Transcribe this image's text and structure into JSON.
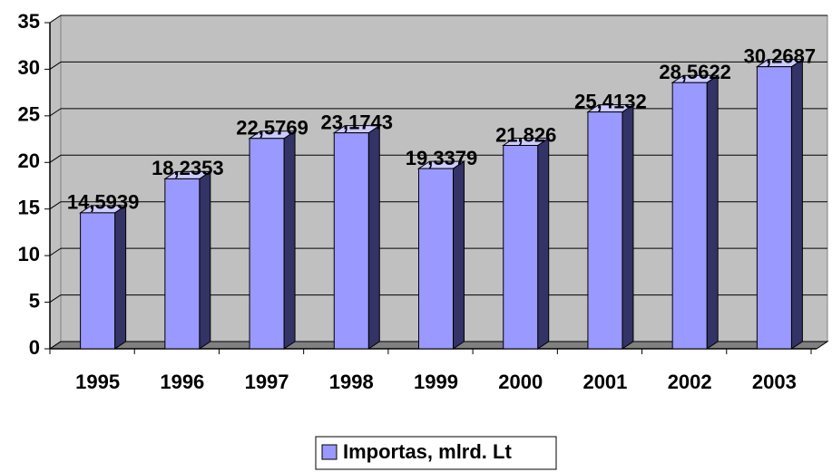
{
  "chart_data": {
    "type": "bar",
    "categories": [
      "1995",
      "1996",
      "1997",
      "1998",
      "1999",
      "2000",
      "2001",
      "2002",
      "2003"
    ],
    "series": [
      {
        "name": "Importas, mlrd. Lt",
        "color": "#9999ff",
        "values": [
          14.5939,
          18.2353,
          22.5769,
          23.1743,
          19.3379,
          21.826,
          25.4132,
          28.5622,
          30.2687
        ],
        "value_labels": [
          "14,5939",
          "18,2353",
          "22,5769",
          "23,1743",
          "19,3379",
          "21,826",
          "25,4132",
          "28,5622",
          "30,2687"
        ]
      }
    ],
    "ylim": [
      0,
      35
    ],
    "yticks": [
      0,
      5,
      10,
      15,
      20,
      25,
      30,
      35
    ],
    "grid": true,
    "legend": "bottom"
  }
}
